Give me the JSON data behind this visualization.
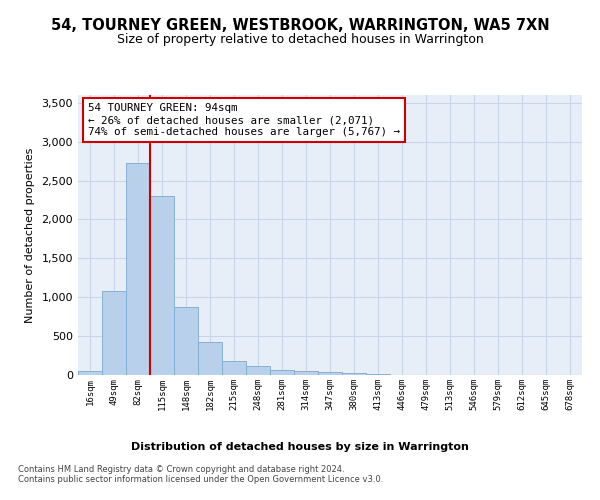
{
  "title": "54, TOURNEY GREEN, WESTBROOK, WARRINGTON, WA5 7XN",
  "subtitle": "Size of property relative to detached houses in Warrington",
  "xlabel": "Distribution of detached houses by size in Warrington",
  "ylabel": "Number of detached properties",
  "bin_labels": [
    "16sqm",
    "49sqm",
    "82sqm",
    "115sqm",
    "148sqm",
    "182sqm",
    "215sqm",
    "248sqm",
    "281sqm",
    "314sqm",
    "347sqm",
    "380sqm",
    "413sqm",
    "446sqm",
    "479sqm",
    "513sqm",
    "546sqm",
    "579sqm",
    "612sqm",
    "645sqm",
    "678sqm"
  ],
  "bar_values": [
    50,
    1075,
    2720,
    2300,
    880,
    430,
    175,
    110,
    70,
    55,
    35,
    20,
    10,
    5,
    3,
    2,
    1,
    1,
    0,
    0,
    0
  ],
  "bar_color": "#b8d0ea",
  "bar_edge_color": "#7aaad0",
  "grid_color": "#c8d4e8",
  "background_color": "#e8eef8",
  "red_line_color": "#cc0000",
  "annotation_text": "54 TOURNEY GREEN: 94sqm\n← 26% of detached houses are smaller (2,071)\n74% of semi-detached houses are larger (5,767) →",
  "annotation_box_color": "white",
  "annotation_box_edge": "#cc0000",
  "footer_text": "Contains HM Land Registry data © Crown copyright and database right 2024.\nContains public sector information licensed under the Open Government Licence v3.0.",
  "ylim": [
    0,
    3600
  ],
  "yticks": [
    0,
    500,
    1000,
    1500,
    2000,
    2500,
    3000,
    3500
  ],
  "title_fontsize": 10.5,
  "subtitle_fontsize": 9,
  "red_line_x": 2.5
}
